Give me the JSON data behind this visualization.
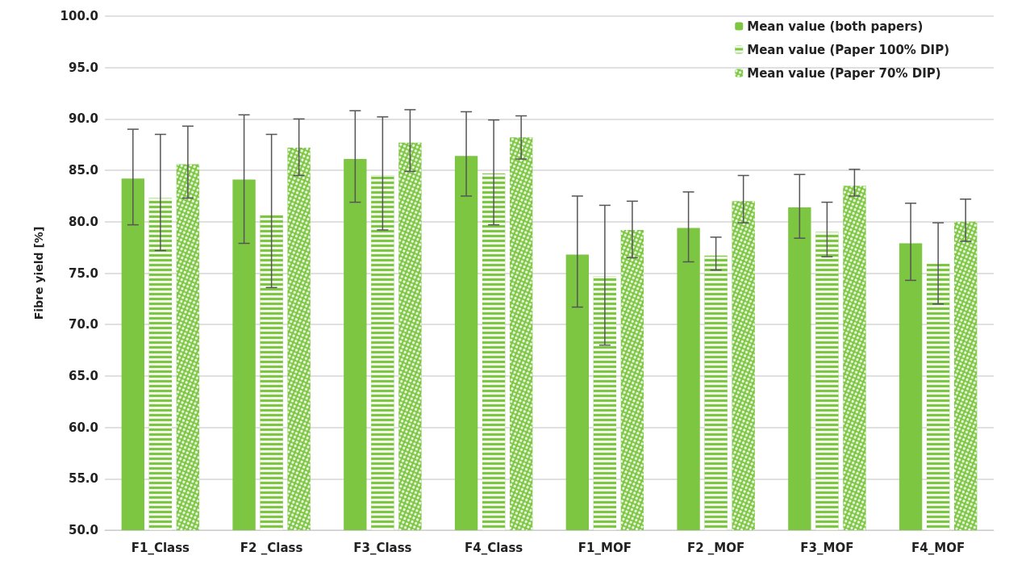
{
  "chart_data": {
    "type": "bar",
    "ylabel": "Fibre yield [%]",
    "categories": [
      "F1_Class",
      "F2 _Class",
      "F3_Class",
      "F4_Class",
      "F1_MOF",
      "F2 _MOF",
      "F3_MOF",
      "F4_MOF"
    ],
    "series": [
      {
        "name": "Mean value (both papers)",
        "color": "#7dc642",
        "values": [
          84.2,
          84.1,
          86.1,
          86.4,
          76.8,
          79.4,
          81.4,
          77.9
        ],
        "errors": [
          [
            79.7,
            89.0
          ],
          [
            77.9,
            90.4
          ],
          [
            81.9,
            90.8
          ],
          [
            82.5,
            90.7
          ],
          [
            71.7,
            82.5
          ],
          [
            76.1,
            82.9
          ],
          [
            78.4,
            84.6
          ],
          [
            74.3,
            81.8
          ]
        ]
      },
      {
        "name": "Mean value (Paper 100% DIP)",
        "color": "#7dc642",
        "values": [
          82.3,
          80.7,
          84.5,
          84.7,
          74.7,
          76.7,
          79.0,
          75.9
        ],
        "errors": [
          [
            77.2,
            88.5
          ],
          [
            73.6,
            88.5
          ],
          [
            79.2,
            90.2
          ],
          [
            79.7,
            89.9
          ],
          [
            68.0,
            81.6
          ],
          [
            75.3,
            78.5
          ],
          [
            76.6,
            81.9
          ],
          [
            72.0,
            79.9
          ]
        ]
      },
      {
        "name": "Mean value (Paper 70% DIP)",
        "color": "#7dc642",
        "values": [
          85.6,
          87.2,
          87.7,
          88.2,
          79.2,
          82.0,
          83.5,
          80.0
        ],
        "errors": [
          [
            82.3,
            89.3
          ],
          [
            84.5,
            90.0
          ],
          [
            84.9,
            90.9
          ],
          [
            86.1,
            90.3
          ],
          [
            76.5,
            82.0
          ],
          [
            79.9,
            84.5
          ],
          [
            82.5,
            85.1
          ],
          [
            78.1,
            82.2
          ]
        ]
      }
    ],
    "ylim": [
      50,
      100
    ],
    "yticks": [
      {
        "value": 50,
        "label": "50.0"
      },
      {
        "value": 55,
        "label": "55.0"
      },
      {
        "value": 60,
        "label": "60.0"
      },
      {
        "value": 65,
        "label": "65.0"
      },
      {
        "value": 70,
        "label": "70.0"
      },
      {
        "value": 75,
        "label": "75.0"
      },
      {
        "value": 80,
        "label": "80.0"
      },
      {
        "value": 85,
        "label": "85.0"
      },
      {
        "value": 90,
        "label": "90.0"
      },
      {
        "value": 95,
        "label": "95.0"
      },
      {
        "value": 100,
        "label": "100.0"
      }
    ],
    "grid": "y",
    "legend": "top right"
  }
}
